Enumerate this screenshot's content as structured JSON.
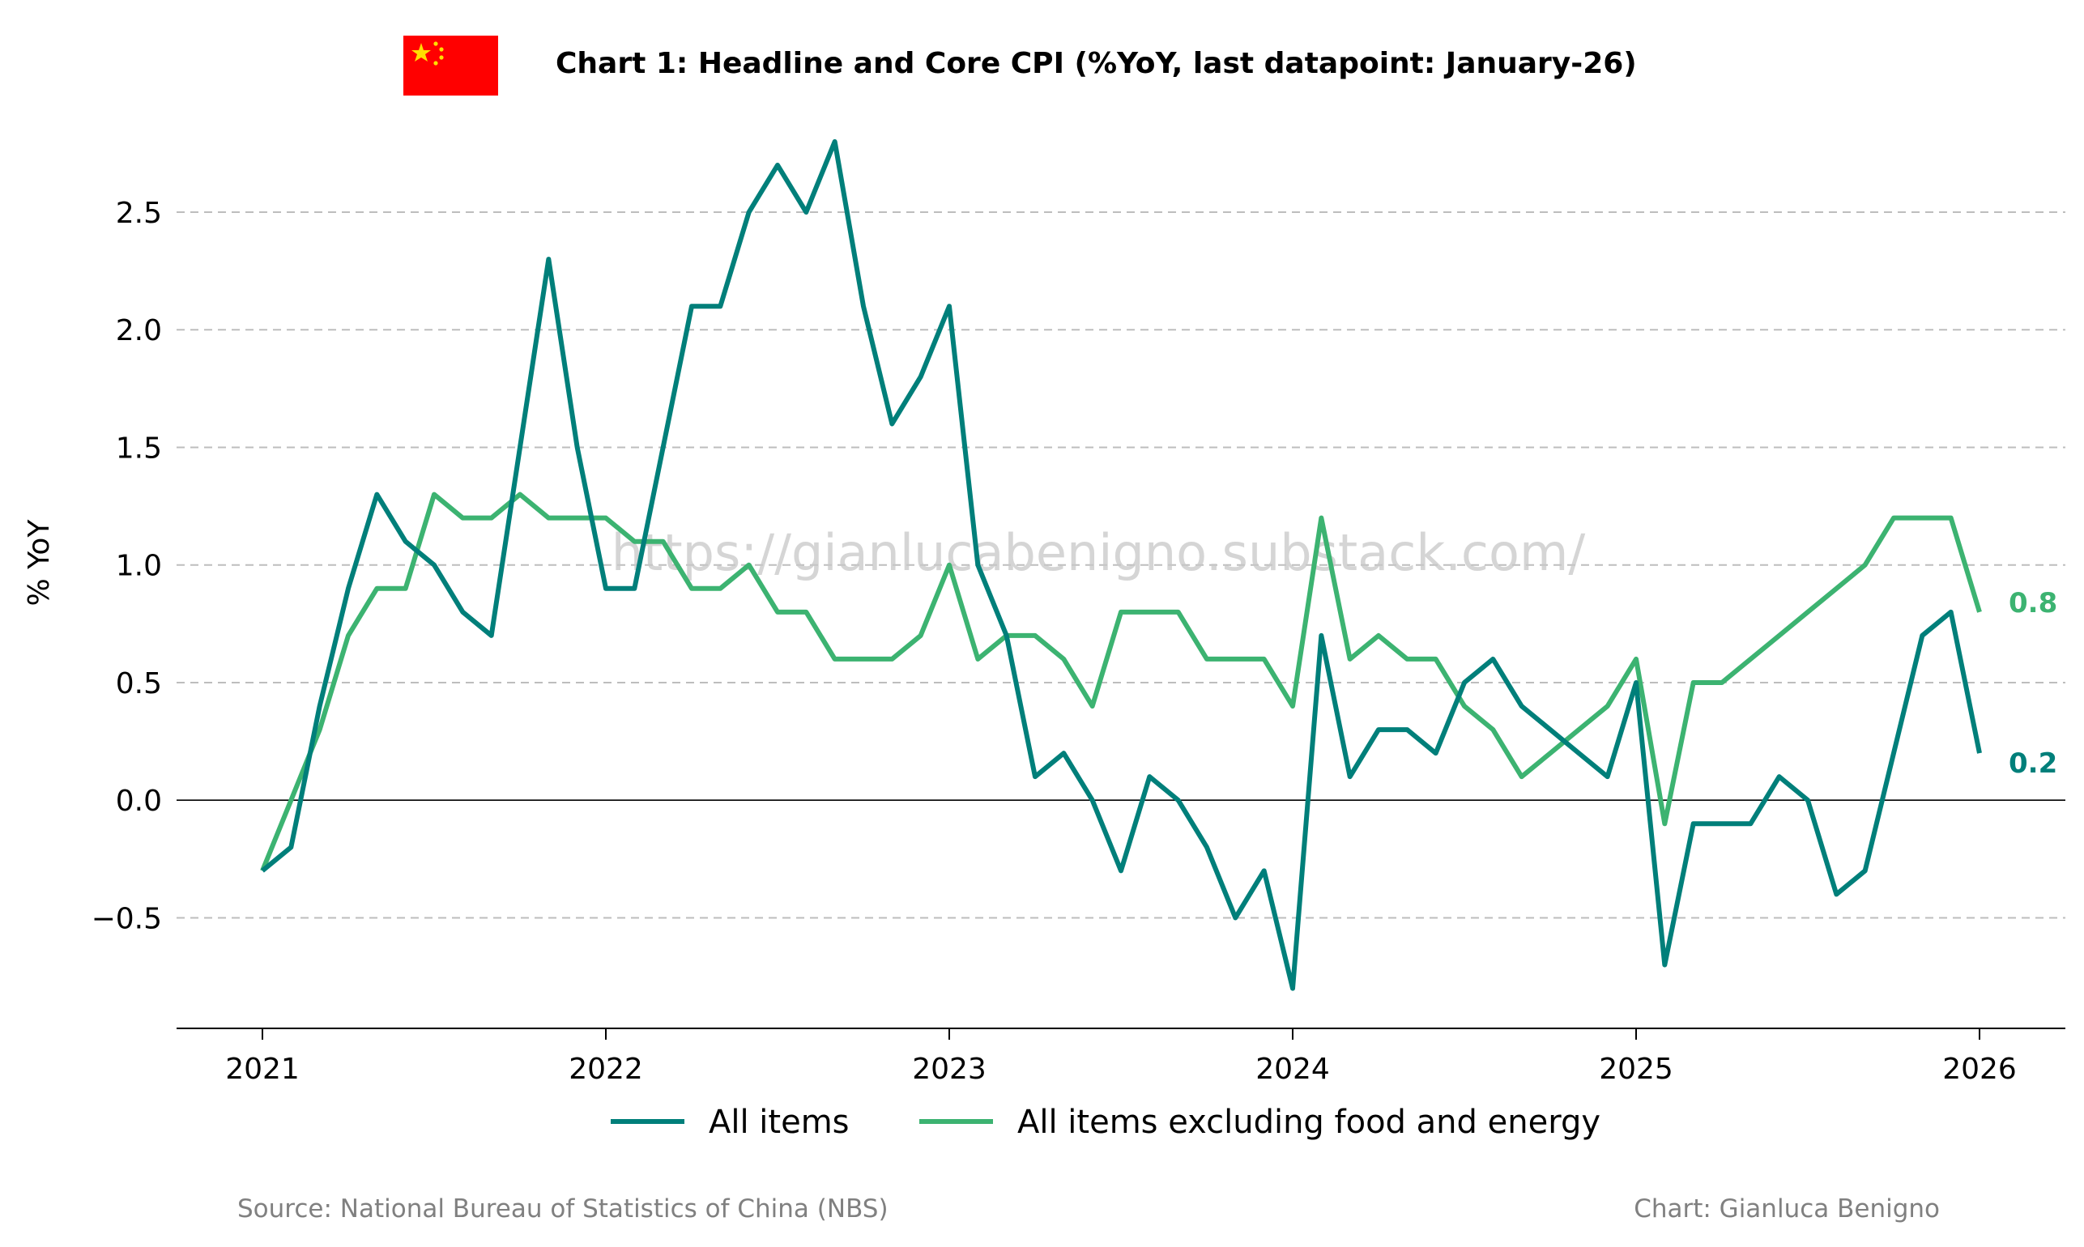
{
  "chart_data": {
    "type": "line",
    "title": "Chart 1: Headline and Core CPI (%YoY, last datapoint: January-26)",
    "ylabel": "% YoY",
    "xlabel": "",
    "ylim": [
      -0.97,
      2.92
    ],
    "xlim": [
      "2020-10",
      "2026-04"
    ],
    "yticks": [
      -0.5,
      0.0,
      0.5,
      1.0,
      1.5,
      2.0,
      2.5
    ],
    "ytick_labels": [
      "−0.5",
      "0.0",
      "0.5",
      "1.0",
      "1.5",
      "2.0",
      "2.5"
    ],
    "xticks": [
      "2021",
      "2022",
      "2023",
      "2024",
      "2025",
      "2026"
    ],
    "grid": "horizontal dashed",
    "zero_line": true,
    "legend_position": "bottom-center",
    "x": [
      "2021-01",
      "2021-02",
      "2021-03",
      "2021-04",
      "2021-05",
      "2021-06",
      "2021-07",
      "2021-08",
      "2021-09",
      "2021-10",
      "2021-11",
      "2021-12",
      "2022-01",
      "2022-02",
      "2022-03",
      "2022-04",
      "2022-05",
      "2022-06",
      "2022-07",
      "2022-08",
      "2022-09",
      "2022-10",
      "2022-11",
      "2022-12",
      "2023-01",
      "2023-02",
      "2023-03",
      "2023-04",
      "2023-05",
      "2023-06",
      "2023-07",
      "2023-08",
      "2023-09",
      "2023-10",
      "2023-11",
      "2023-12",
      "2024-01",
      "2024-02",
      "2024-03",
      "2024-04",
      "2024-05",
      "2024-06",
      "2024-07",
      "2024-08",
      "2024-09",
      "2024-10",
      "2024-11",
      "2024-12",
      "2025-01",
      "2025-02",
      "2025-03",
      "2025-04",
      "2025-05",
      "2025-06",
      "2025-07",
      "2025-08",
      "2025-09",
      "2025-10",
      "2025-11",
      "2025-12",
      "2026-01"
    ],
    "series": [
      {
        "name": "All items",
        "color": "#007f7a",
        "end_label": "0.2",
        "values": [
          -0.3,
          -0.2,
          0.4,
          0.9,
          1.3,
          1.1,
          1.0,
          0.8,
          0.7,
          1.5,
          2.3,
          1.5,
          0.9,
          0.9,
          1.5,
          2.1,
          2.1,
          2.5,
          2.7,
          2.5,
          2.8,
          2.1,
          1.6,
          1.8,
          2.1,
          1.0,
          0.7,
          0.1,
          0.2,
          0.0,
          -0.3,
          0.1,
          0.0,
          -0.2,
          -0.5,
          -0.3,
          -0.8,
          0.7,
          0.1,
          0.3,
          0.3,
          0.2,
          0.5,
          0.6,
          0.4,
          0.3,
          0.2,
          0.1,
          0.5,
          -0.7,
          -0.1,
          -0.1,
          -0.1,
          0.1,
          0.0,
          -0.4,
          -0.3,
          0.2,
          0.7,
          0.8,
          0.2
        ]
      },
      {
        "name": "All items excluding food and energy",
        "color": "#3cb371",
        "end_label": "0.8",
        "values": [
          -0.3,
          0.0,
          0.3,
          0.7,
          0.9,
          0.9,
          1.3,
          1.2,
          1.2,
          1.3,
          1.2,
          1.2,
          1.2,
          1.1,
          1.1,
          0.9,
          0.9,
          1.0,
          0.8,
          0.8,
          0.6,
          0.6,
          0.6,
          0.7,
          1.0,
          0.6,
          0.7,
          0.7,
          0.6,
          0.4,
          0.8,
          0.8,
          0.8,
          0.6,
          0.6,
          0.6,
          0.4,
          1.2,
          0.6,
          0.7,
          0.6,
          0.6,
          0.4,
          0.3,
          0.1,
          0.2,
          0.3,
          0.4,
          0.6,
          -0.1,
          0.5,
          0.5,
          0.6,
          0.7,
          0.8,
          0.9,
          1.0,
          1.2,
          1.2,
          1.2,
          0.8
        ]
      }
    ]
  },
  "flag": {
    "country": "China",
    "icon": "china-flag-icon",
    "background": "#ff0000",
    "star_color": "#ffde00"
  },
  "watermark": "https://gianlucabenigno.substack.com/",
  "footer": {
    "source": "Source: National Bureau of Statistics of China (NBS)",
    "credit": "Chart: Gianluca Benigno"
  }
}
